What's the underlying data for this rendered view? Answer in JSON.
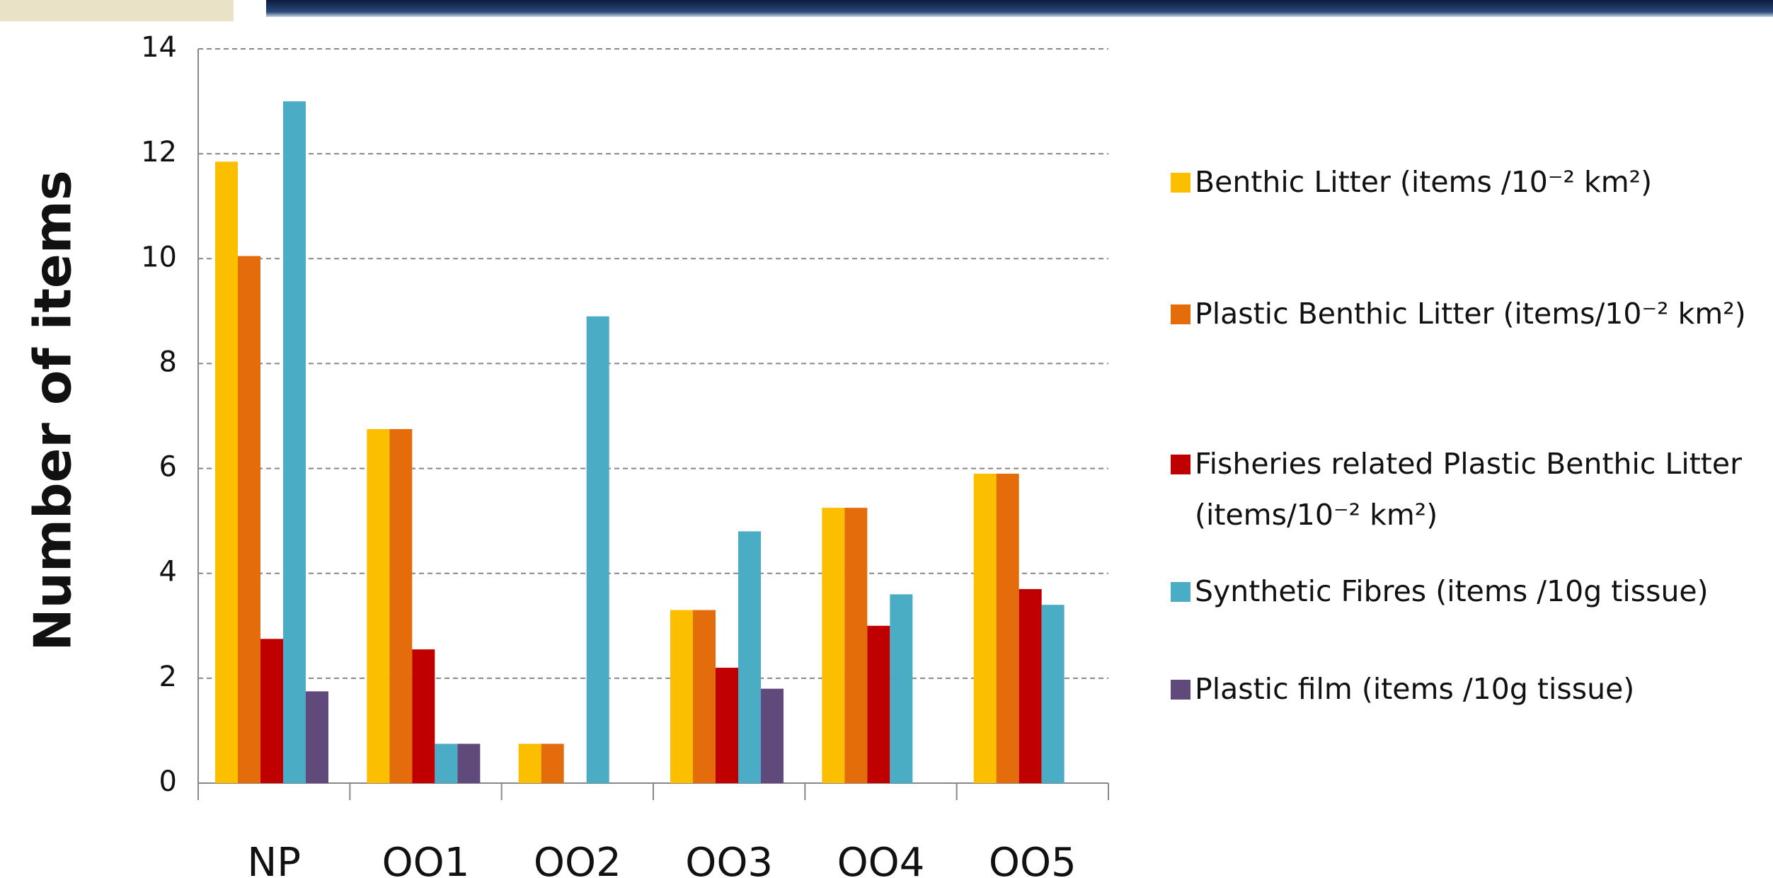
{
  "chart_data": {
    "type": "bar",
    "y_label": "Number of items",
    "categories": [
      "NP",
      "OO1",
      "OO2",
      "OO3",
      "OO4",
      "OO5"
    ],
    "series": [
      {
        "name": "Benthic Litter (items /10⁻² km²)",
        "color": "#fcbf00",
        "values": [
          11.85,
          6.75,
          0.75,
          3.3,
          5.25,
          5.9
        ]
      },
      {
        "name": "Plastic Benthic Litter (items/10⁻² km²)",
        "color": "#e46c0a",
        "values": [
          10.05,
          6.75,
          0.75,
          3.3,
          5.25,
          5.9
        ]
      },
      {
        "name": "Fisheries related Plastic Benthic Litter (items/10⁻² km²)",
        "color": "#c00000",
        "values": [
          2.75,
          2.55,
          null,
          2.2,
          3.0,
          3.7
        ]
      },
      {
        "name": "Synthetic Fibres (items /10g tissue)",
        "color": "#4bacc6",
        "values": [
          13.0,
          0.75,
          8.9,
          4.8,
          3.6,
          3.4
        ]
      },
      {
        "name": "Plastic film (items /10g tissue)",
        "color": "#604a7b",
        "values": [
          1.75,
          0.75,
          null,
          1.8,
          null,
          null
        ]
      }
    ],
    "ylim": [
      0,
      14
    ],
    "yticks": [
      0,
      2,
      4,
      6,
      8,
      10,
      12,
      14
    ],
    "grid": true
  }
}
